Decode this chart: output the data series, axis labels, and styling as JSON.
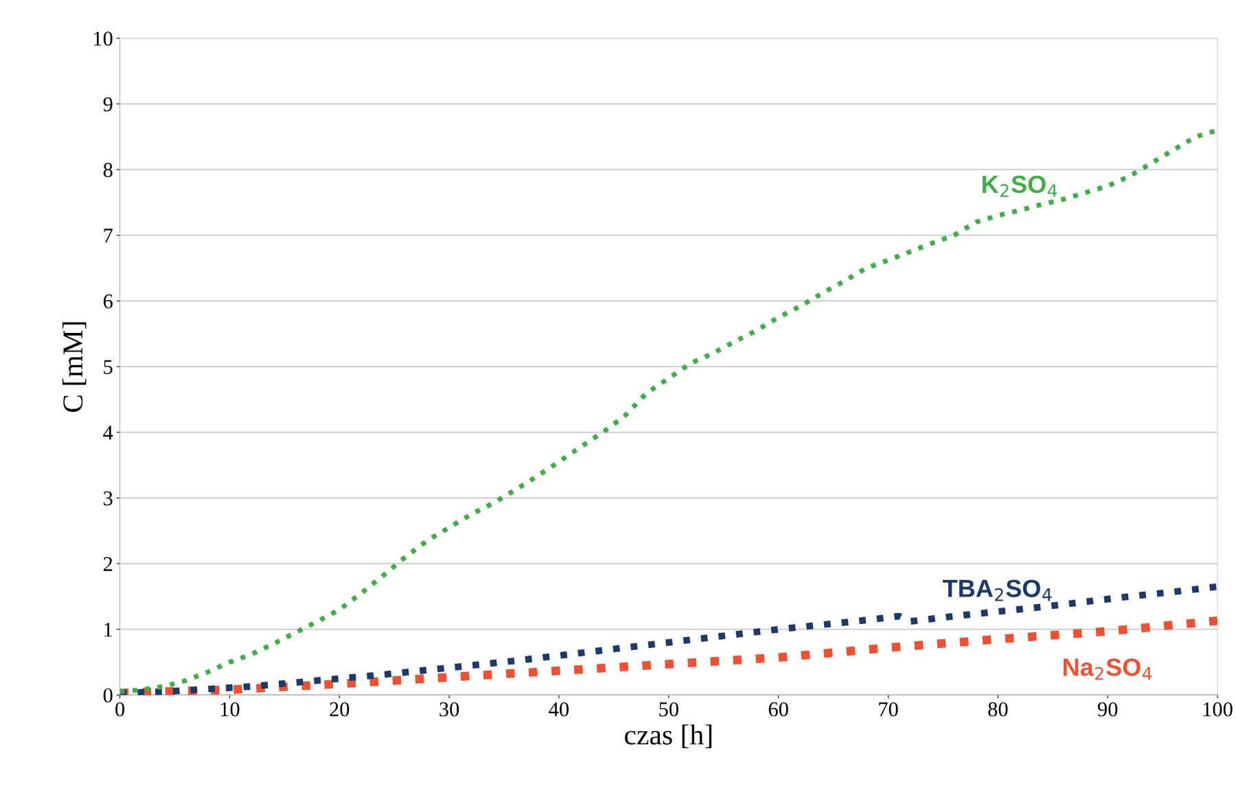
{
  "chart_data": {
    "type": "line",
    "xlabel": "czas [h]",
    "ylabel": "C [mM]",
    "xlim": [
      0,
      100
    ],
    "ylim": [
      0,
      10
    ],
    "xticks": [
      0,
      10,
      20,
      30,
      40,
      50,
      60,
      70,
      80,
      90,
      100
    ],
    "yticks": [
      0,
      1,
      2,
      3,
      4,
      5,
      6,
      7,
      8,
      9,
      10
    ],
    "grid": "y",
    "line_style": "dotted",
    "legend": false,
    "series": [
      {
        "name": "K$_{2}$SO$_{4}$",
        "color": "#3cb043",
        "x": [
          0,
          2,
          4,
          6,
          8,
          10,
          12,
          14,
          16,
          18,
          20,
          22,
          24,
          26,
          28,
          30,
          32,
          34,
          36,
          38,
          40,
          42,
          44,
          46,
          48,
          50,
          52,
          54,
          56,
          58,
          60,
          62,
          64,
          66,
          68,
          70,
          72,
          74,
          76,
          78,
          80,
          82,
          84,
          86,
          88,
          90,
          92,
          94,
          96,
          98,
          100
        ],
        "values": [
          0.05,
          0.08,
          0.13,
          0.22,
          0.35,
          0.5,
          0.62,
          0.78,
          0.95,
          1.12,
          1.3,
          1.55,
          1.82,
          2.1,
          2.35,
          2.55,
          2.75,
          2.92,
          3.12,
          3.33,
          3.55,
          3.78,
          4.0,
          4.25,
          4.6,
          4.82,
          5.05,
          5.2,
          5.38,
          5.55,
          5.75,
          5.92,
          6.12,
          6.3,
          6.5,
          6.62,
          6.75,
          6.88,
          7.0,
          7.2,
          7.3,
          7.38,
          7.47,
          7.55,
          7.65,
          7.75,
          7.9,
          8.1,
          8.3,
          8.5,
          8.6
        ]
      },
      {
        "name": "TBA$_{2}$SO$_{4}$",
        "color": "#1b3a6b",
        "x": [
          0,
          4,
          8,
          12,
          16,
          20,
          24,
          28,
          32,
          36,
          40,
          44,
          48,
          52,
          56,
          60,
          64,
          68,
          71,
          72,
          76,
          80,
          84,
          88,
          92,
          96,
          100
        ],
        "values": [
          0.03,
          0.05,
          0.09,
          0.13,
          0.19,
          0.25,
          0.31,
          0.38,
          0.45,
          0.52,
          0.6,
          0.68,
          0.76,
          0.84,
          0.92,
          1.0,
          1.07,
          1.14,
          1.2,
          1.12,
          1.2,
          1.27,
          1.34,
          1.42,
          1.5,
          1.57,
          1.65
        ]
      },
      {
        "name": "Na$_{2}$SO$_{4}$",
        "color": "#f05030",
        "x": [
          0,
          10,
          20,
          30,
          40,
          50,
          60,
          70,
          80,
          90,
          100
        ],
        "values": [
          0.03,
          0.08,
          0.17,
          0.27,
          0.37,
          0.47,
          0.57,
          0.72,
          0.85,
          0.97,
          1.13
        ]
      }
    ]
  }
}
